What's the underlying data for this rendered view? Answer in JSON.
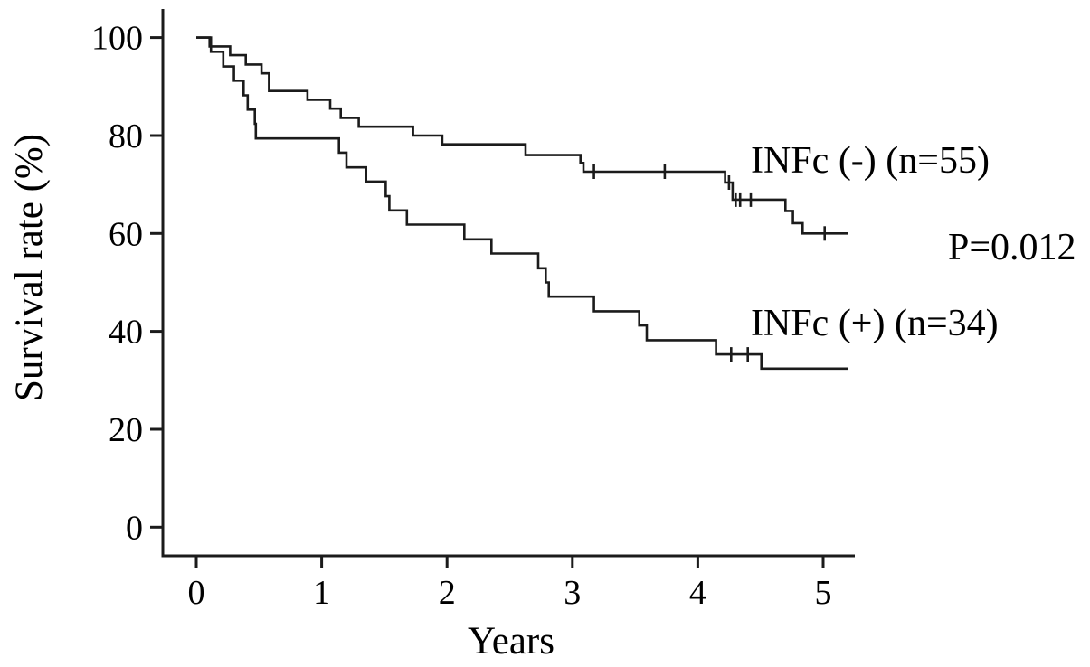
{
  "figure": {
    "background": "#ffffff",
    "line_color": "#1b1b1b",
    "text_color": "#000000"
  },
  "chart_data": {
    "type": "line",
    "subtype": "kaplan-meier-step-survival",
    "title": "",
    "xlabel": "Years",
    "ylabel": "Survival rate (%)",
    "annotation": "P=0.012",
    "xlim": [
      0,
      5.3
    ],
    "ylim": [
      0,
      100
    ],
    "xticks": [
      0,
      1,
      2,
      3,
      4,
      5
    ],
    "yticks": [
      0,
      20,
      40,
      60,
      80,
      100
    ],
    "grid": false,
    "legend_position": "inline-right-of-curves",
    "series": [
      {
        "name": "INFc (-) (n=55)",
        "n": 55,
        "start": [
          0,
          100
        ],
        "end_t": 5.2,
        "steps": [
          [
            0.106,
            98.2
          ],
          [
            0.27,
            96.4
          ],
          [
            0.395,
            94.5
          ],
          [
            0.52,
            92.7
          ],
          [
            0.58,
            89.1
          ],
          [
            0.887,
            87.3
          ],
          [
            1.068,
            85.5
          ],
          [
            1.152,
            83.6
          ],
          [
            1.296,
            81.8
          ],
          [
            1.729,
            80.0
          ],
          [
            1.962,
            78.2
          ],
          [
            2.626,
            76.0
          ],
          [
            3.064,
            74.4
          ],
          [
            3.088,
            72.6
          ],
          [
            4.218,
            70.4
          ],
          [
            4.278,
            66.9
          ],
          [
            4.699,
            64.6
          ],
          [
            4.759,
            62.1
          ],
          [
            4.836,
            60.0
          ]
        ],
        "censors": [
          [
            3.172,
            72.6
          ],
          [
            3.737,
            72.6
          ],
          [
            4.249,
            70.4
          ],
          [
            4.302,
            66.9
          ],
          [
            4.338,
            66.9
          ],
          [
            4.423,
            66.9
          ],
          [
            5.012,
            60.0
          ]
        ]
      },
      {
        "name": "INFc (+) (n=34)",
        "n": 34,
        "start": [
          0,
          100
        ],
        "end_t": 5.2,
        "steps": [
          [
            0.117,
            97.1
          ],
          [
            0.215,
            94.1
          ],
          [
            0.3,
            91.2
          ],
          [
            0.377,
            88.2
          ],
          [
            0.41,
            85.3
          ],
          [
            0.467,
            82.4
          ],
          [
            0.475,
            79.4
          ],
          [
            1.138,
            76.5
          ],
          [
            1.198,
            73.5
          ],
          [
            1.354,
            70.6
          ],
          [
            1.511,
            67.6
          ],
          [
            1.54,
            64.7
          ],
          [
            1.68,
            61.8
          ],
          [
            2.138,
            58.8
          ],
          [
            2.354,
            55.9
          ],
          [
            2.727,
            52.9
          ],
          [
            2.787,
            50.0
          ],
          [
            2.812,
            47.1
          ],
          [
            3.172,
            44.1
          ],
          [
            3.533,
            41.2
          ],
          [
            3.593,
            38.2
          ],
          [
            4.146,
            35.3
          ],
          [
            4.507,
            32.4
          ]
        ],
        "censors": [
          [
            4.266,
            35.3
          ],
          [
            4.399,
            35.3
          ]
        ]
      }
    ]
  }
}
